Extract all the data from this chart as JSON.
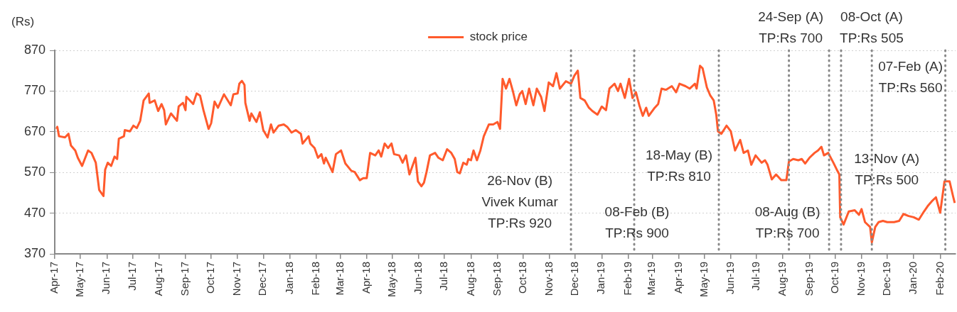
{
  "chart_data": {
    "type": "line",
    "ylabel": "(Rs)",
    "ylim": [
      370,
      870
    ],
    "yticks": [
      370,
      470,
      570,
      670,
      770,
      870
    ],
    "grid": "y",
    "legend": "top",
    "xlim": [
      "2017-04-01",
      "2020-02-19"
    ],
    "xticks": [
      {
        "value": "2017-04-01",
        "label": "Apr-17"
      },
      {
        "value": "2017-05-01",
        "label": "May-17"
      },
      {
        "value": "2017-06-01",
        "label": "Jun-17"
      },
      {
        "value": "2017-07-01",
        "label": "Jul-17"
      },
      {
        "value": "2017-08-01",
        "label": "Aug-17"
      },
      {
        "value": "2017-09-01",
        "label": "Sep-17"
      },
      {
        "value": "2017-10-01",
        "label": "Oct-17"
      },
      {
        "value": "2017-11-01",
        "label": "Nov-17"
      },
      {
        "value": "2017-12-01",
        "label": "Dec-17"
      },
      {
        "value": "2018-01-01",
        "label": "Jan-18"
      },
      {
        "value": "2018-02-01",
        "label": "Feb-18"
      },
      {
        "value": "2018-03-01",
        "label": "Mar-18"
      },
      {
        "value": "2018-04-01",
        "label": "Apr-18"
      },
      {
        "value": "2018-05-01",
        "label": "May-18"
      },
      {
        "value": "2018-06-01",
        "label": "Jun-18"
      },
      {
        "value": "2018-07-01",
        "label": "Jul-18"
      },
      {
        "value": "2018-08-01",
        "label": "Aug-18"
      },
      {
        "value": "2018-09-01",
        "label": "Sep-18"
      },
      {
        "value": "2018-10-01",
        "label": "Oct-18"
      },
      {
        "value": "2018-11-01",
        "label": "Nov-18"
      },
      {
        "value": "2018-12-01",
        "label": "Dec-18"
      },
      {
        "value": "2019-01-01",
        "label": "Jan-19"
      },
      {
        "value": "2019-02-01",
        "label": "Feb-19"
      },
      {
        "value": "2019-03-01",
        "label": "Mar-19"
      },
      {
        "value": "2019-04-01",
        "label": "Apr-19"
      },
      {
        "value": "2019-05-01",
        "label": "May-19"
      },
      {
        "value": "2019-06-01",
        "label": "Jun-19"
      },
      {
        "value": "2019-07-01",
        "label": "Jul-19"
      },
      {
        "value": "2019-08-01",
        "label": "Aug-19"
      },
      {
        "value": "2019-09-01",
        "label": "Sep-19"
      },
      {
        "value": "2019-10-01",
        "label": "Oct-19"
      },
      {
        "value": "2019-11-01",
        "label": "Nov-19"
      },
      {
        "value": "2019-12-01",
        "label": "Dec-19"
      },
      {
        "value": "2020-01-01",
        "label": "Jan-20"
      },
      {
        "value": "2020-02-01",
        "label": "Feb-20"
      }
    ],
    "series": [
      {
        "name": "stock price",
        "color": "#ff5a2c",
        "x": [
          "2017-04-03",
          "2017-04-04",
          "2017-04-06",
          "2017-04-13",
          "2017-04-17",
          "2017-04-20",
          "2017-04-25",
          "2017-04-28",
          "2017-05-03",
          "2017-05-10",
          "2017-05-14",
          "2017-05-19",
          "2017-05-23",
          "2017-05-28",
          "2017-05-30",
          "2017-06-02",
          "2017-06-06",
          "2017-06-10",
          "2017-06-13",
          "2017-06-15",
          "2017-06-21",
          "2017-06-22",
          "2017-06-28",
          "2017-07-02",
          "2017-07-06",
          "2017-07-10",
          "2017-07-14",
          "2017-07-20",
          "2017-07-21",
          "2017-07-27",
          "2017-07-31",
          "2017-08-04",
          "2017-08-07",
          "2017-08-09",
          "2017-08-15",
          "2017-08-22",
          "2017-08-24",
          "2017-08-29",
          "2017-09-01",
          "2017-09-02",
          "2017-09-06",
          "2017-09-10",
          "2017-09-14",
          "2017-09-18",
          "2017-09-22",
          "2017-09-28",
          "2017-10-01",
          "2017-10-05",
          "2017-10-09",
          "2017-10-16",
          "2017-10-24",
          "2017-10-27",
          "2017-11-01",
          "2017-11-03",
          "2017-11-06",
          "2017-11-09",
          "2017-11-10",
          "2017-11-15",
          "2017-11-17",
          "2017-11-23",
          "2017-11-27",
          "2017-12-01",
          "2017-12-06",
          "2017-12-10",
          "2017-12-13",
          "2017-12-19",
          "2017-12-25",
          "2017-12-29",
          "2018-01-03",
          "2018-01-08",
          "2018-01-14",
          "2018-01-16",
          "2018-01-23",
          "2018-01-25",
          "2018-01-30",
          "2018-02-03",
          "2018-02-07",
          "2018-02-10",
          "2018-02-12",
          "2018-02-16",
          "2018-02-20",
          "2018-02-24",
          "2018-03-02",
          "2018-03-07",
          "2018-03-14",
          "2018-03-18",
          "2018-03-24",
          "2018-03-28",
          "2018-04-01",
          "2018-04-05",
          "2018-04-11",
          "2018-04-15",
          "2018-04-18",
          "2018-04-22",
          "2018-04-26",
          "2018-04-30",
          "2018-05-03",
          "2018-05-09",
          "2018-05-13",
          "2018-05-17",
          "2018-05-21",
          "2018-05-28",
          "2018-05-31",
          "2018-06-04",
          "2018-06-07",
          "2018-06-10",
          "2018-06-14",
          "2018-06-20",
          "2018-06-24",
          "2018-06-29",
          "2018-07-04",
          "2018-07-09",
          "2018-07-13",
          "2018-07-16",
          "2018-07-19",
          "2018-07-23",
          "2018-07-27",
          "2018-07-29",
          "2018-08-01",
          "2018-08-04",
          "2018-08-08",
          "2018-08-12",
          "2018-08-16",
          "2018-08-22",
          "2018-08-27",
          "2018-09-01",
          "2018-09-04",
          "2018-09-07",
          "2018-09-11",
          "2018-09-15",
          "2018-09-19",
          "2018-09-23",
          "2018-09-27",
          "2018-09-30",
          "2018-10-04",
          "2018-10-08",
          "2018-10-13",
          "2018-10-17",
          "2018-10-22",
          "2018-10-26",
          "2018-10-31",
          "2018-11-05",
          "2018-11-09",
          "2018-11-13",
          "2018-11-20",
          "2018-11-26",
          "2018-11-30",
          "2018-12-04",
          "2018-12-07",
          "2018-12-12",
          "2018-12-17",
          "2018-12-21",
          "2018-12-27",
          "2019-01-01",
          "2019-01-06",
          "2019-01-10",
          "2019-01-16",
          "2019-01-20",
          "2019-01-23",
          "2019-01-28",
          "2019-02-02",
          "2019-02-06",
          "2019-02-10",
          "2019-02-14",
          "2019-02-18",
          "2019-02-22",
          "2019-02-25",
          "2019-03-04",
          "2019-03-08",
          "2019-03-12",
          "2019-03-17",
          "2019-03-24",
          "2019-03-29",
          "2019-04-02",
          "2019-04-09",
          "2019-04-14",
          "2019-04-20",
          "2019-04-22",
          "2019-04-26",
          "2019-04-29",
          "2019-05-04",
          "2019-05-08",
          "2019-05-12",
          "2019-05-15",
          "2019-05-17",
          "2019-05-21",
          "2019-05-27",
          "2019-06-01",
          "2019-06-06",
          "2019-06-12",
          "2019-06-16",
          "2019-06-21",
          "2019-06-25",
          "2019-06-30",
          "2019-07-07",
          "2019-07-11",
          "2019-07-14",
          "2019-07-19",
          "2019-07-24",
          "2019-07-30",
          "2019-08-05",
          "2019-08-08",
          "2019-08-13",
          "2019-08-19",
          "2019-08-23",
          "2019-08-27",
          "2019-09-01",
          "2019-09-07",
          "2019-09-11",
          "2019-09-15",
          "2019-09-18",
          "2019-09-23",
          "2019-09-29",
          "2019-10-03",
          "2019-10-06",
          "2019-10-07",
          "2019-10-11",
          "2019-10-17",
          "2019-10-24",
          "2019-10-29",
          "2019-11-01",
          "2019-11-05",
          "2019-11-11",
          "2019-11-13",
          "2019-11-17",
          "2019-11-21",
          "2019-11-26",
          "2019-12-01",
          "2019-12-09",
          "2019-12-15",
          "2019-12-20",
          "2019-12-26",
          "2020-01-01",
          "2020-01-07",
          "2020-01-13",
          "2020-01-18",
          "2020-01-23",
          "2020-01-27",
          "2020-02-01",
          "2020-02-06",
          "2020-02-12",
          "2020-02-16",
          "2020-02-18"
        ],
        "values": [
          677,
          682,
          659,
          656,
          665,
          636,
          624,
          606,
          586,
          624,
          618,
          594,
          527,
          512,
          577,
          594,
          586,
          609,
          603,
          653,
          659,
          674,
          671,
          685,
          679,
          697,
          747,
          764,
          741,
          747,
          721,
          738,
          723,
          688,
          715,
          697,
          732,
          741,
          723,
          756,
          747,
          738,
          764,
          759,
          723,
          677,
          691,
          744,
          729,
          762,
          735,
          762,
          764,
          788,
          795,
          785,
          741,
          697,
          715,
          694,
          718,
          674,
          656,
          688,
          668,
          685,
          688,
          682,
          668,
          674,
          665,
          641,
          659,
          641,
          630,
          606,
          615,
          592,
          606,
          589,
          571,
          615,
          624,
          592,
          574,
          571,
          551,
          556,
          556,
          618,
          612,
          624,
          609,
          641,
          630,
          641,
          615,
          612,
          594,
          612,
          565,
          606,
          548,
          536,
          545,
          571,
          612,
          618,
          606,
          600,
          627,
          618,
          603,
          571,
          568,
          594,
          589,
          603,
          600,
          624,
          600,
          624,
          659,
          688,
          688,
          694,
          677,
          800,
          776,
          800,
          770,
          735,
          762,
          770,
          738,
          776,
          735,
          776,
          756,
          721,
          791,
          782,
          814,
          776,
          794,
          788,
          808,
          820,
          753,
          747,
          729,
          721,
          712,
          732,
          723,
          776,
          788,
          770,
          788,
          753,
          800,
          753,
          767,
          735,
          709,
          729,
          709,
          729,
          738,
          776,
          773,
          782,
          767,
          788,
          782,
          776,
          788,
          776,
          832,
          826,
          779,
          759,
          747,
          712,
          671,
          665,
          685,
          671,
          624,
          650,
          618,
          624,
          589,
          612,
          594,
          600,
          589,
          553,
          565,
          551,
          551,
          597,
          603,
          600,
          603,
          592,
          606,
          618,
          624,
          633,
          612,
          618,
          594,
          577,
          565,
          460,
          442,
          474,
          477,
          466,
          480,
          448,
          436,
          398,
          436,
          448,
          451,
          448,
          448,
          451,
          468,
          463,
          460,
          454,
          474,
          489,
          501,
          509,
          471,
          548,
          548,
          512,
          495
        ]
      }
    ],
    "ref_lines": [
      {
        "axis": "x",
        "value": "2018-11-26",
        "label": "26-Nov (B)\nVivek Kumar\nTP:Rs 920",
        "color": "#888888",
        "line_style": "dotted"
      },
      {
        "axis": "x",
        "value": "2019-02-08",
        "label": "08-Feb (B)\nTP:Rs 900",
        "color": "#888888",
        "line_style": "dotted"
      },
      {
        "axis": "x",
        "value": "2019-05-18",
        "label": "18-May (B)\nTP:Rs 810",
        "color": "#888888",
        "line_style": "dotted"
      },
      {
        "axis": "x",
        "value": "2019-08-08",
        "label": "08-Aug (B)\nTP:Rs 700",
        "color": "#888888",
        "line_style": "dotted"
      },
      {
        "axis": "x",
        "value": "2019-09-24",
        "label": "24-Sep (A)\nTP:Rs 700",
        "color": "#888888",
        "line_style": "dotted"
      },
      {
        "axis": "x",
        "value": "2019-10-08",
        "label": "08-Oct (A)\nTP:Rs 505",
        "color": "#888888",
        "line_style": "dotted"
      },
      {
        "axis": "x",
        "value": "2019-11-13",
        "label": "13-Nov (A)\nTP:Rs 500",
        "color": "#888888",
        "line_style": "dotted"
      },
      {
        "axis": "x",
        "value": "2020-02-07",
        "label": "07-Feb (A)\nTP:Rs 560",
        "color": "#888888",
        "line_style": "dotted"
      }
    ]
  }
}
